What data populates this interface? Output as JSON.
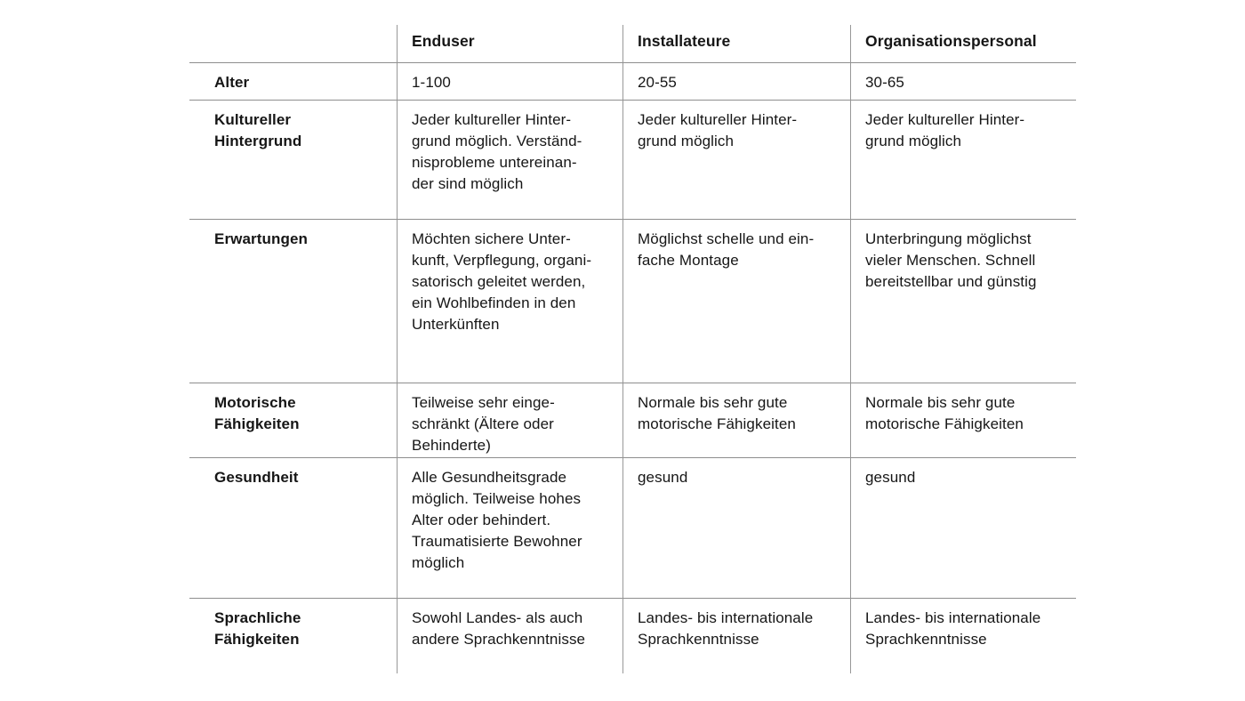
{
  "page": {
    "description_visible": "",
    "colors": {
      "background": "#ffffff",
      "text": "#161616",
      "rule_horizontal": "#8e8e8e",
      "rule_vertical": "#989898"
    }
  },
  "table": {
    "columns": [
      "",
      "Enduser",
      "Installateure",
      "Organisationspersonal"
    ],
    "rows": [
      {
        "label": "Alter",
        "cells": [
          "1-100",
          "20-55",
          "30-65"
        ]
      },
      {
        "label": "Kultureller\nHintergrund",
        "cells": [
          "Jeder kultureller Hinter-\ngrund möglich. Verständ-\nnisprobleme untereinan-\nder sind möglich",
          "Jeder kultureller Hinter-\ngrund möglich",
          "Jeder kultureller Hinter-\ngrund möglich"
        ]
      },
      {
        "label": "Erwartungen",
        "cells": [
          "Möchten sichere Unter-\nkunft, Verpflegung, organi-\nsatorisch geleitet werden,\nein Wohlbefinden in den\nUnterkünften",
          "Möglichst schelle und ein-\nfache Montage",
          "Unterbringung möglichst\nvieler Menschen. Schnell\nbereitstellbar und günstig"
        ]
      },
      {
        "label": "Motorische\nFähigkeiten",
        "cells": [
          "Teilweise sehr einge-\nschränkt (Ältere oder\nBehinderte)",
          "Normale bis sehr gute\nmotorische Fähigkeiten",
          "Normale bis sehr gute\nmotorische Fähigkeiten"
        ]
      },
      {
        "label": "Gesundheit",
        "cells": [
          "Alle Gesundheitsgrade\nmöglich. Teilweise hohes\nAlter oder behindert.\nTraumatisierte Bewohner\nmöglich",
          "gesund",
          "gesund"
        ]
      },
      {
        "label": "Sprachliche\nFähigkeiten",
        "cells": [
          "Sowohl Landes- als auch\nandere Sprachkenntnisse",
          "Landes- bis internationale\nSprachkenntnisse",
          "Landes- bis internationale\nSprachkenntnisse"
        ]
      }
    ]
  }
}
